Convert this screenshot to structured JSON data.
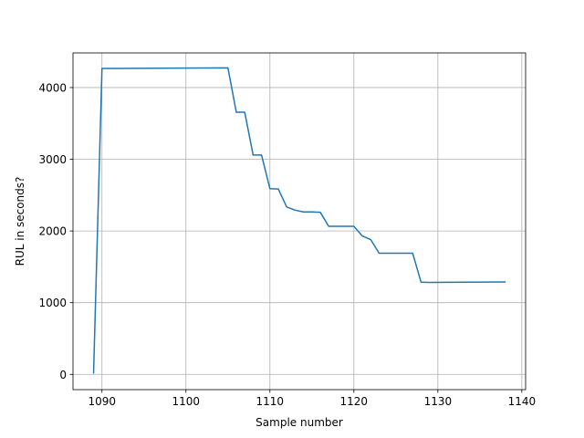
{
  "chart_data": {
    "type": "line",
    "title": "",
    "xlabel": "Sample number",
    "ylabel": "RUL in seconds?",
    "xlim": [
      1086.55,
      1140.45
    ],
    "ylim": [
      -213,
      4483
    ],
    "grid": true,
    "legend": "none",
    "line_color": "#1f77b4",
    "x_ticks": [
      1090,
      1100,
      1110,
      1120,
      1130,
      1140
    ],
    "y_ticks": [
      0,
      1000,
      2000,
      3000,
      4000
    ],
    "x_tick_labels": [
      "1090",
      "1100",
      "1110",
      "1120",
      "1130",
      "1140"
    ],
    "y_tick_labels": [
      "0",
      "1000",
      "2000",
      "3000",
      "4000"
    ],
    "series": [
      {
        "x": [
          1089,
          1090,
          1105,
          1106,
          1107,
          1108,
          1109,
          1110,
          1111,
          1112,
          1113,
          1114,
          1115,
          1116,
          1117,
          1118,
          1119,
          1120,
          1121,
          1122,
          1123,
          1124,
          1125,
          1126,
          1127,
          1128,
          1129,
          1138
        ],
        "y": [
          20,
          4266,
          4275,
          3655,
          3655,
          3060,
          3060,
          2590,
          2585,
          2335,
          2290,
          2265,
          2265,
          2260,
          2065,
          2065,
          2065,
          2065,
          1930,
          1880,
          1690,
          1690,
          1690,
          1690,
          1690,
          1285,
          1283,
          1288
        ]
      }
    ]
  }
}
